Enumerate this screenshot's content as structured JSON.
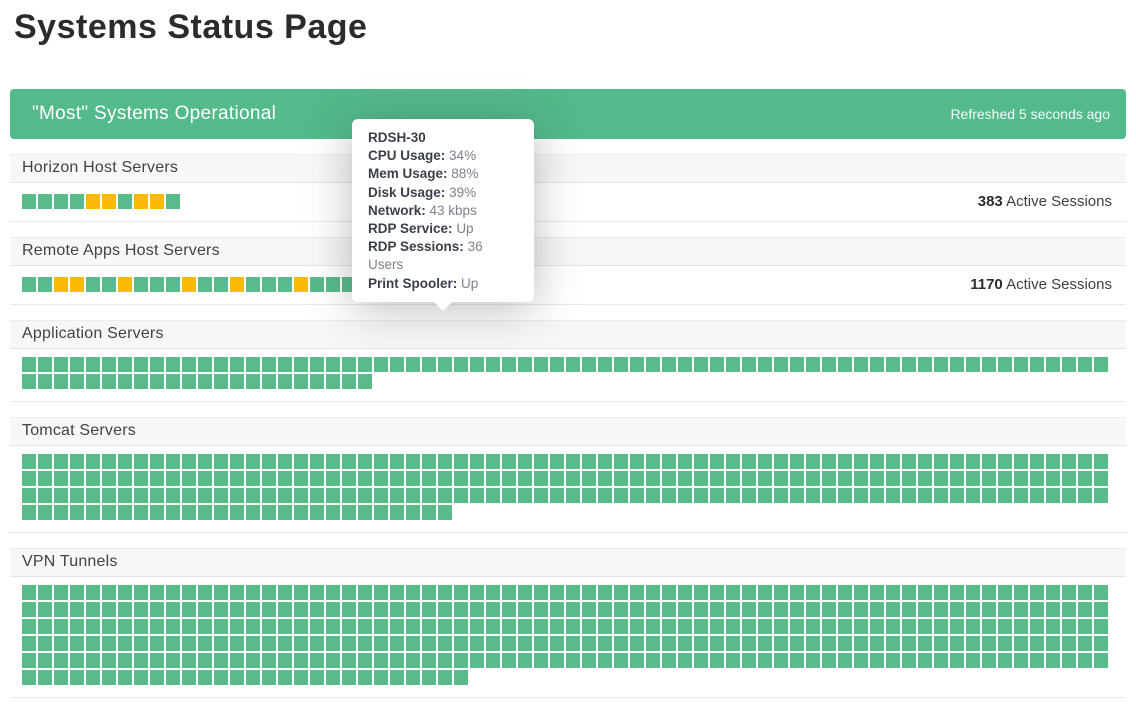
{
  "page": {
    "title": "Systems Status Page"
  },
  "banner": {
    "status_text": "\"Most\" Systems Operational",
    "refreshed_text": "Refreshed 5 seconds ago"
  },
  "colors": {
    "green": "#57bb8a",
    "yellow": "#fcba04",
    "dark": "#363c4b",
    "banner-green": "#52ba8c"
  },
  "sections": [
    {
      "title": "Horizon Host Servers",
      "sessions_count": "383",
      "sessions_label": "Active Sessions",
      "statuses": [
        "up",
        "up",
        "up",
        "up",
        "warn",
        "warn",
        "up",
        "warn",
        "warn",
        "up"
      ]
    },
    {
      "title": "Remote Apps Host Servers",
      "sessions_count": "1170",
      "sessions_label": "Active Sessions",
      "statuses": [
        "up",
        "up",
        "warn",
        "warn",
        "up",
        "up",
        "warn",
        "up",
        "up",
        "up",
        "warn",
        "up",
        "up",
        "warn",
        "up",
        "up",
        "up",
        "warn",
        "up",
        "up",
        "up",
        "up",
        "warn",
        "up",
        "warn",
        "up",
        "hover"
      ]
    },
    {
      "title": "Application Servers",
      "up_count": 90
    },
    {
      "title": "Tomcat Servers",
      "up_count": 231
    },
    {
      "title": "VPN Tunnels",
      "up_count": 368
    }
  ],
  "tooltip": {
    "server_name": "RDSH-30",
    "rows": [
      {
        "label": "CPU Usage:",
        "value": "34%"
      },
      {
        "label": "Mem Usage:",
        "value": "88%"
      },
      {
        "label": "Disk Usage:",
        "value": "39%"
      },
      {
        "label": "Network:",
        "value": "43 kbps"
      },
      {
        "label": "RDP Service:",
        "value": "Up"
      },
      {
        "label": "RDP Sessions:",
        "value": "36 Users"
      },
      {
        "label": "Print Spooler:",
        "value": "Up"
      }
    ]
  }
}
